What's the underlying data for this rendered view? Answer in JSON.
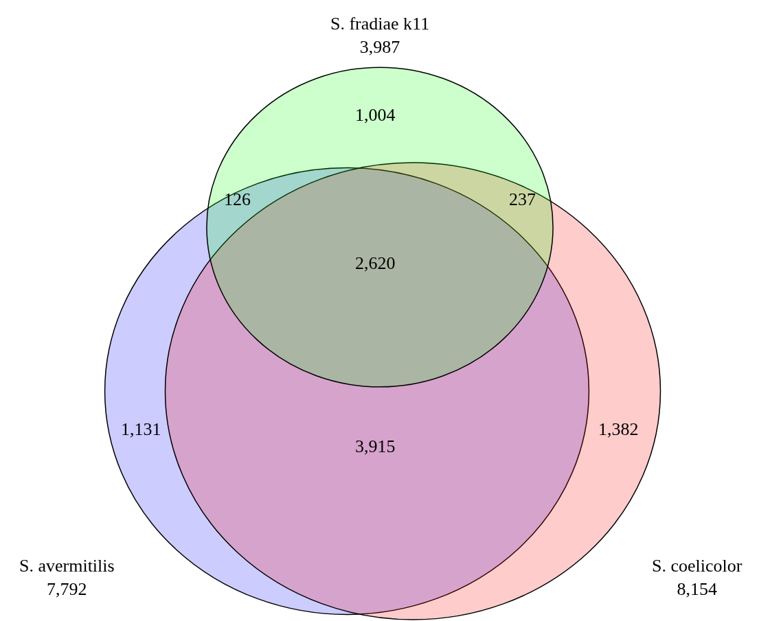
{
  "chart_data": {
    "type": "other",
    "categories": [
      "S. fradiae k11",
      "S. avermitilis",
      "S. coelicolor"
    ],
    "values": [
      3987,
      7792,
      8154
    ],
    "colors": [
      "#00ff00",
      "#0000ff",
      "#ff0000"
    ],
    "value_labels": [
      "3,987",
      "7,792",
      "8,154"
    ],
    "annotations": [
      "1,004",
      "126",
      "237",
      "2,620",
      "1,131",
      "3,915",
      "1,382"
    ]
  }
}
